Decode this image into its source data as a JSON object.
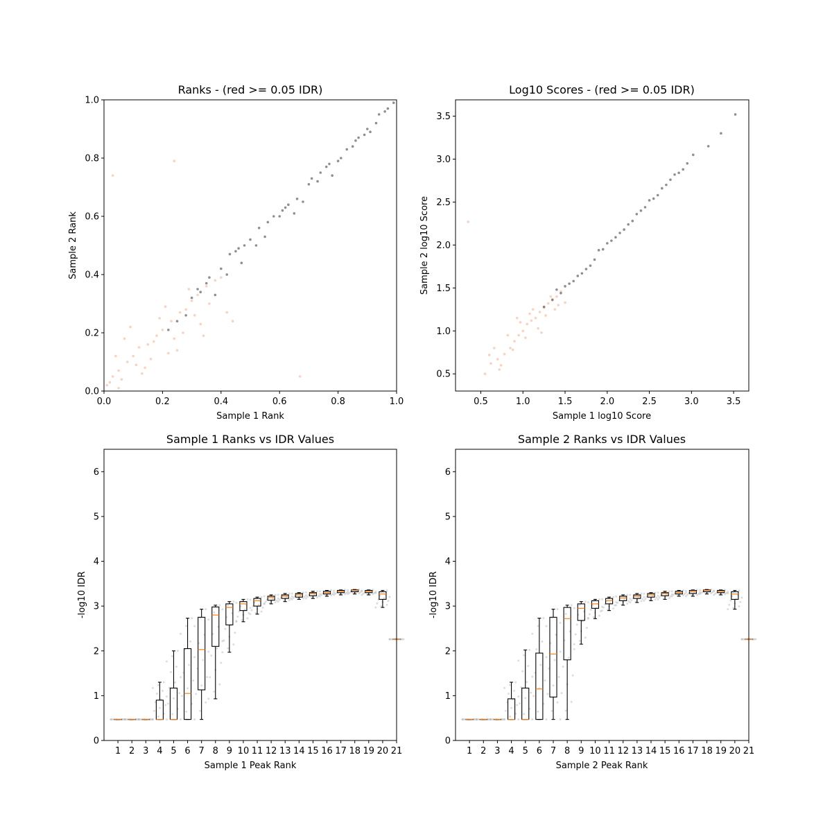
{
  "colors": {
    "reproducible": "#333333",
    "irreproducible": "#f4a582",
    "spread": "#aaaaaa",
    "median": "#ff7f0e",
    "box": "#000000"
  },
  "chart_data": [
    {
      "id": "ranks",
      "type": "scatter",
      "title": "Ranks - (red >= 0.05 IDR)",
      "xlabel": "Sample 1 Rank",
      "ylabel": "Sample 2 Rank",
      "xlim": [
        0.0,
        1.0
      ],
      "ylim": [
        0.0,
        1.0
      ],
      "xticks": [
        "0.0",
        "0.2",
        "0.4",
        "0.6",
        "0.8",
        "1.0"
      ],
      "yticks": [
        "0.0",
        "0.2",
        "0.4",
        "0.6",
        "0.8",
        "1.0"
      ],
      "series": [
        {
          "role": "irreproducible",
          "color": "#f4a582",
          "x": [
            0.01,
            0.03,
            0.05,
            0.08,
            0.1,
            0.12,
            0.15,
            0.18,
            0.2,
            0.23,
            0.26,
            0.28,
            0.3,
            0.32,
            0.35,
            0.04,
            0.07,
            0.14,
            0.22,
            0.27,
            0.33,
            0.02,
            0.06,
            0.11,
            0.16,
            0.19,
            0.24,
            0.29,
            0.36,
            0.38,
            0.42,
            0.09,
            0.13,
            0.21,
            0.25,
            0.31,
            0.34,
            0.05,
            0.17,
            0.4,
            0.03,
            0.44,
            0.24,
            0.67
          ],
          "y": [
            0.02,
            0.05,
            0.07,
            0.1,
            0.12,
            0.15,
            0.16,
            0.19,
            0.21,
            0.24,
            0.27,
            0.28,
            0.31,
            0.33,
            0.36,
            0.12,
            0.18,
            0.08,
            0.13,
            0.2,
            0.23,
            0.03,
            0.04,
            0.09,
            0.11,
            0.25,
            0.18,
            0.35,
            0.3,
            0.38,
            0.27,
            0.22,
            0.06,
            0.29,
            0.14,
            0.26,
            0.19,
            0.01,
            0.17,
            0.39,
            0.74,
            0.24,
            0.79,
            0.05
          ]
        },
        {
          "role": "reproducible",
          "color": "#333333",
          "x": [
            0.22,
            0.25,
            0.28,
            0.3,
            0.33,
            0.36,
            0.4,
            0.43,
            0.46,
            0.5,
            0.53,
            0.56,
            0.6,
            0.63,
            0.66,
            0.7,
            0.73,
            0.76,
            0.8,
            0.83,
            0.86,
            0.9,
            0.93,
            0.96,
            0.99,
            0.35,
            0.42,
            0.48,
            0.55,
            0.61,
            0.68,
            0.74,
            0.81,
            0.87,
            0.94,
            0.38,
            0.45,
            0.52,
            0.58,
            0.65,
            0.71,
            0.78,
            0.85,
            0.91,
            0.97,
            0.32,
            0.47,
            0.62,
            0.77,
            0.89
          ],
          "y": [
            0.21,
            0.24,
            0.26,
            0.32,
            0.34,
            0.39,
            0.42,
            0.47,
            0.49,
            0.52,
            0.56,
            0.58,
            0.6,
            0.64,
            0.66,
            0.71,
            0.72,
            0.77,
            0.79,
            0.83,
            0.86,
            0.9,
            0.92,
            0.96,
            0.99,
            0.37,
            0.4,
            0.5,
            0.53,
            0.62,
            0.65,
            0.75,
            0.8,
            0.87,
            0.95,
            0.33,
            0.48,
            0.5,
            0.6,
            0.61,
            0.73,
            0.74,
            0.84,
            0.89,
            0.97,
            0.35,
            0.44,
            0.63,
            0.78,
            0.88
          ]
        }
      ]
    },
    {
      "id": "scores",
      "type": "scatter",
      "title": "Log10 Scores - (red >= 0.05 IDR)",
      "xlabel": "Sample 1 log10 Score",
      "ylabel": "Sample 2 log10 Score",
      "xlim": [
        0.2,
        3.68
      ],
      "ylim": [
        0.3,
        3.69
      ],
      "xticks": [
        "0.5",
        "1.0",
        "1.5",
        "2.0",
        "2.5",
        "3.0",
        "3.5"
      ],
      "yticks": [
        "0.5",
        "1.0",
        "1.5",
        "2.0",
        "2.5",
        "3.0",
        "3.5"
      ],
      "series": [
        {
          "role": "irreproducible",
          "color": "#f4a582",
          "x": [
            0.55,
            0.62,
            0.7,
            0.78,
            0.85,
            0.9,
            0.95,
            1.0,
            1.05,
            1.1,
            1.15,
            1.2,
            1.25,
            1.3,
            1.35,
            1.4,
            1.45,
            0.66,
            0.74,
            0.82,
            0.88,
            0.97,
            1.03,
            1.12,
            1.18,
            1.27,
            1.33,
            1.42,
            0.6,
            0.93,
            1.08,
            1.22,
            1.38,
            0.35,
            0.72,
            1.5
          ],
          "y": [
            0.5,
            0.62,
            0.67,
            0.73,
            0.8,
            0.88,
            0.95,
            1.0,
            1.08,
            1.12,
            1.15,
            1.22,
            1.27,
            1.32,
            1.37,
            1.4,
            1.46,
            0.8,
            0.6,
            0.95,
            0.78,
            1.1,
            0.92,
            1.25,
            1.03,
            1.18,
            1.4,
            1.3,
            0.72,
            1.15,
            1.2,
            0.98,
            1.25,
            2.27,
            0.55,
            1.33
          ]
        },
        {
          "role": "reproducible",
          "color": "#333333",
          "x": [
            1.25,
            1.35,
            1.45,
            1.55,
            1.65,
            1.75,
            1.85,
            1.95,
            2.05,
            2.15,
            2.25,
            2.35,
            2.45,
            2.55,
            2.65,
            2.75,
            2.85,
            2.95,
            3.02,
            1.4,
            1.6,
            1.8,
            2.0,
            2.2,
            2.4,
            2.6,
            2.8,
            1.5,
            1.7,
            1.9,
            2.1,
            2.3,
            2.5,
            2.7,
            2.9,
            3.2,
            3.35,
            3.52
          ],
          "y": [
            1.28,
            1.36,
            1.44,
            1.55,
            1.64,
            1.72,
            1.83,
            1.95,
            2.05,
            2.14,
            2.24,
            2.36,
            2.44,
            2.54,
            2.66,
            2.76,
            2.84,
            2.95,
            3.05,
            1.48,
            1.58,
            1.76,
            2.02,
            2.18,
            2.4,
            2.58,
            2.82,
            1.52,
            1.67,
            1.94,
            2.09,
            2.28,
            2.52,
            2.7,
            2.88,
            3.15,
            3.3,
            3.52
          ]
        }
      ]
    },
    {
      "id": "s1idr",
      "type": "box",
      "title": "Sample 1 Ranks vs IDR Values",
      "xlabel": "Sample 1 Peak Rank",
      "ylabel": "-log10 IDR",
      "xlim": [
        0,
        21
      ],
      "ylim": [
        0,
        6.5
      ],
      "categories": [
        "1",
        "2",
        "3",
        "4",
        "5",
        "6",
        "7",
        "8",
        "9",
        "10",
        "11",
        "12",
        "13",
        "14",
        "15",
        "16",
        "17",
        "18",
        "19",
        "20",
        "21"
      ],
      "yticks": [
        "0",
        "1",
        "2",
        "3",
        "4",
        "5",
        "6"
      ],
      "boxes": [
        {
          "min": 0.47,
          "q1": 0.47,
          "median": 0.47,
          "q3": 0.47,
          "max": 0.47
        },
        {
          "min": 0.47,
          "q1": 0.47,
          "median": 0.47,
          "q3": 0.47,
          "max": 0.47
        },
        {
          "min": 0.47,
          "q1": 0.47,
          "median": 0.47,
          "q3": 0.47,
          "max": 0.47
        },
        {
          "min": 0.47,
          "q1": 0.47,
          "median": 0.47,
          "q3": 0.9,
          "max": 1.3
        },
        {
          "min": 0.47,
          "q1": 0.47,
          "median": 0.47,
          "q3": 1.17,
          "max": 2.0
        },
        {
          "min": 0.47,
          "q1": 0.47,
          "median": 1.05,
          "q3": 2.05,
          "max": 2.73
        },
        {
          "min": 0.47,
          "q1": 1.13,
          "median": 2.03,
          "q3": 2.75,
          "max": 2.93
        },
        {
          "min": 0.93,
          "q1": 2.1,
          "median": 2.8,
          "q3": 2.98,
          "max": 3.02
        },
        {
          "min": 1.97,
          "q1": 2.58,
          "median": 2.97,
          "q3": 3.05,
          "max": 3.1
        },
        {
          "min": 2.65,
          "q1": 2.9,
          "median": 3.05,
          "q3": 3.1,
          "max": 3.15
        },
        {
          "min": 2.82,
          "q1": 3.0,
          "median": 3.12,
          "q3": 3.17,
          "max": 3.2
        },
        {
          "min": 3.05,
          "q1": 3.13,
          "median": 3.19,
          "q3": 3.22,
          "max": 3.25
        },
        {
          "min": 3.1,
          "q1": 3.17,
          "median": 3.22,
          "q3": 3.25,
          "max": 3.28
        },
        {
          "min": 3.15,
          "q1": 3.2,
          "median": 3.25,
          "q3": 3.28,
          "max": 3.3
        },
        {
          "min": 3.17,
          "q1": 3.23,
          "median": 3.28,
          "q3": 3.3,
          "max": 3.33
        },
        {
          "min": 3.22,
          "q1": 3.27,
          "median": 3.3,
          "q3": 3.33,
          "max": 3.35
        },
        {
          "min": 3.25,
          "q1": 3.3,
          "median": 3.33,
          "q3": 3.35,
          "max": 3.36
        },
        {
          "min": 3.27,
          "q1": 3.32,
          "median": 3.35,
          "q3": 3.36,
          "max": 3.37
        },
        {
          "min": 3.25,
          "q1": 3.3,
          "median": 3.33,
          "q3": 3.35,
          "max": 3.36
        },
        {
          "min": 2.97,
          "q1": 3.15,
          "median": 3.27,
          "q3": 3.32,
          "max": 3.35
        },
        {
          "min": 2.26,
          "q1": 2.26,
          "median": 2.26,
          "q3": 2.26,
          "max": 2.26
        }
      ]
    },
    {
      "id": "s2idr",
      "type": "box",
      "title": "Sample 2 Ranks vs IDR Values",
      "xlabel": "Sample 2 Peak Rank",
      "ylabel": "-log10 IDR",
      "xlim": [
        0,
        21
      ],
      "ylim": [
        0,
        6.5
      ],
      "categories": [
        "1",
        "2",
        "3",
        "4",
        "5",
        "6",
        "7",
        "8",
        "9",
        "10",
        "11",
        "12",
        "13",
        "14",
        "15",
        "16",
        "17",
        "18",
        "19",
        "20",
        "21"
      ],
      "yticks": [
        "0",
        "1",
        "2",
        "3",
        "4",
        "5",
        "6"
      ],
      "boxes": [
        {
          "min": 0.47,
          "q1": 0.47,
          "median": 0.47,
          "q3": 0.47,
          "max": 0.47
        },
        {
          "min": 0.47,
          "q1": 0.47,
          "median": 0.47,
          "q3": 0.47,
          "max": 0.47
        },
        {
          "min": 0.47,
          "q1": 0.47,
          "median": 0.47,
          "q3": 0.47,
          "max": 0.47
        },
        {
          "min": 0.47,
          "q1": 0.47,
          "median": 0.47,
          "q3": 0.93,
          "max": 1.3
        },
        {
          "min": 0.47,
          "q1": 0.47,
          "median": 0.47,
          "q3": 1.17,
          "max": 2.02
        },
        {
          "min": 0.47,
          "q1": 0.47,
          "median": 1.15,
          "q3": 1.95,
          "max": 2.73
        },
        {
          "min": 0.47,
          "q1": 0.97,
          "median": 1.93,
          "q3": 2.75,
          "max": 2.93
        },
        {
          "min": 0.47,
          "q1": 1.8,
          "median": 2.72,
          "q3": 2.97,
          "max": 3.02
        },
        {
          "min": 2.15,
          "q1": 2.68,
          "median": 2.95,
          "q3": 3.05,
          "max": 3.1
        },
        {
          "min": 2.72,
          "q1": 2.95,
          "median": 3.05,
          "q3": 3.12,
          "max": 3.15
        },
        {
          "min": 2.9,
          "q1": 3.05,
          "median": 3.12,
          "q3": 3.17,
          "max": 3.2
        },
        {
          "min": 3.02,
          "q1": 3.12,
          "median": 3.18,
          "q3": 3.22,
          "max": 3.25
        },
        {
          "min": 3.08,
          "q1": 3.17,
          "median": 3.22,
          "q3": 3.25,
          "max": 3.28
        },
        {
          "min": 3.12,
          "q1": 3.2,
          "median": 3.25,
          "q3": 3.28,
          "max": 3.3
        },
        {
          "min": 3.15,
          "q1": 3.23,
          "median": 3.28,
          "q3": 3.3,
          "max": 3.33
        },
        {
          "min": 3.22,
          "q1": 3.27,
          "median": 3.3,
          "q3": 3.33,
          "max": 3.35
        },
        {
          "min": 3.22,
          "q1": 3.28,
          "median": 3.32,
          "q3": 3.35,
          "max": 3.36
        },
        {
          "min": 3.27,
          "q1": 3.32,
          "median": 3.35,
          "q3": 3.36,
          "max": 3.37
        },
        {
          "min": 3.25,
          "q1": 3.3,
          "median": 3.33,
          "q3": 3.35,
          "max": 3.36
        },
        {
          "min": 2.93,
          "q1": 3.15,
          "median": 3.27,
          "q3": 3.32,
          "max": 3.35
        },
        {
          "min": 2.26,
          "q1": 2.26,
          "median": 2.26,
          "q3": 2.26,
          "max": 2.26
        }
      ]
    }
  ]
}
